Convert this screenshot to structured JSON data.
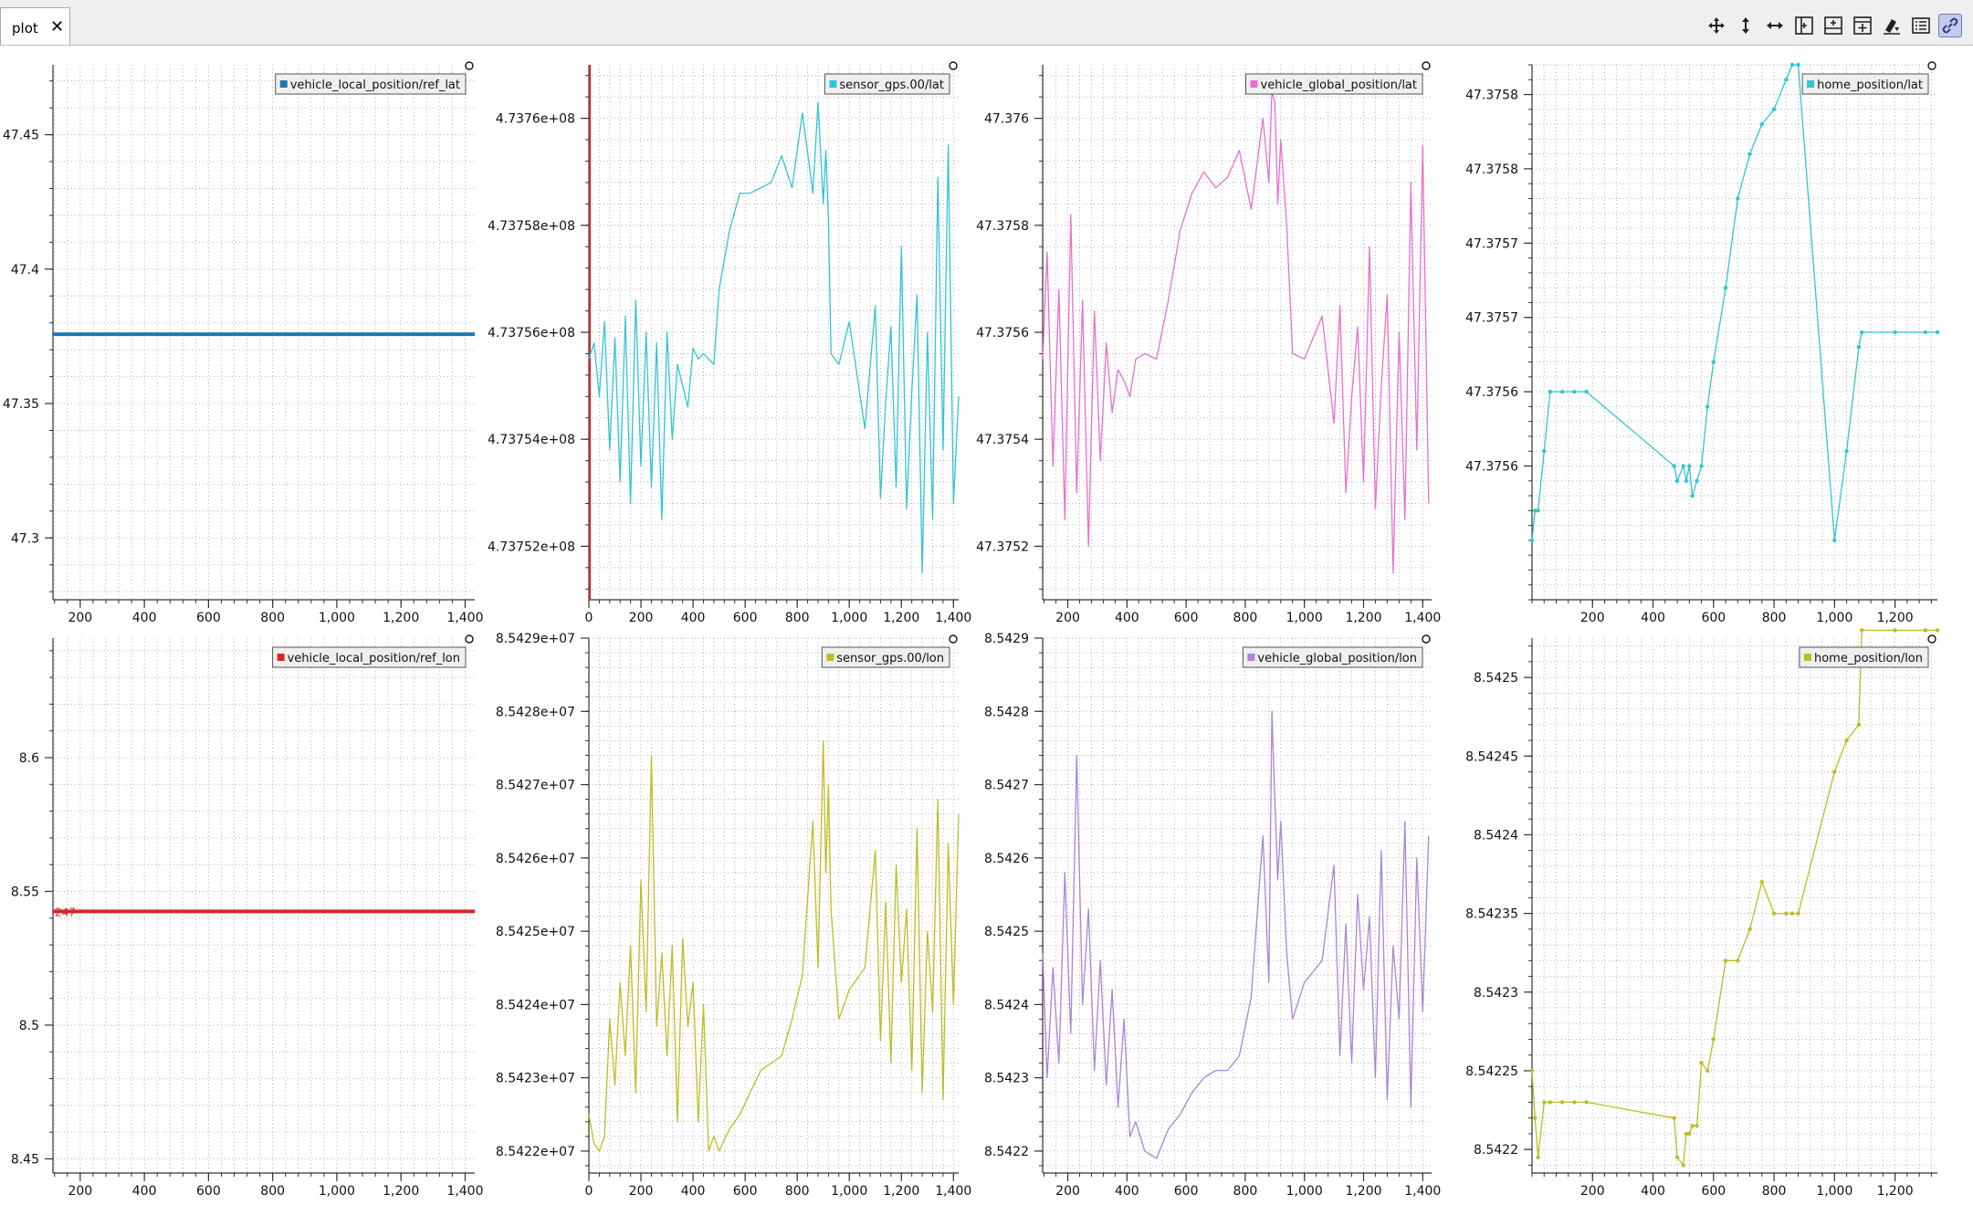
{
  "tab": {
    "label": "plot",
    "close_symbol": "✕"
  },
  "toolbar": [
    {
      "name": "move-icon",
      "active": false
    },
    {
      "name": "zoom-vertical-icon",
      "active": false
    },
    {
      "name": "zoom-horizontal-icon",
      "active": false
    },
    {
      "name": "split-horizontal-icon",
      "active": false
    },
    {
      "name": "split-vertical-icon",
      "active": false
    },
    {
      "name": "add-plot-icon",
      "active": false
    },
    {
      "name": "erase-icon",
      "active": false
    },
    {
      "name": "legend-icon",
      "active": false
    },
    {
      "name": "link-icon",
      "active": true
    }
  ],
  "chart_data": [
    {
      "type": "line",
      "legend": "vehicle_local_position/ref_lat",
      "color": "#1f77b4",
      "line_width": 4,
      "xlim": [
        115,
        1430
      ],
      "ylim": [
        47.277,
        47.476
      ],
      "xticks": [
        200,
        400,
        600,
        800,
        1000,
        1200,
        1400
      ],
      "xtick_labels": [
        "200",
        "400",
        "600",
        "800",
        "1,000",
        "1,200",
        "1,400"
      ],
      "yticks": [
        47.3,
        47.35,
        47.4,
        47.45
      ],
      "ytick_labels": [
        "47.3",
        "47.35",
        "47.4",
        "47.45"
      ],
      "x": [
        115,
        1430
      ],
      "y": [
        47.3758,
        47.3758
      ]
    },
    {
      "type": "line",
      "legend": "sensor_gps.00/lat",
      "color": "#31c4d4",
      "xlim": [
        0,
        1420
      ],
      "ylim": [
        473751000,
        473761000
      ],
      "xticks": [
        0,
        200,
        400,
        600,
        800,
        1000,
        1200,
        1400
      ],
      "xtick_labels": [
        "0",
        "200",
        "400",
        "600",
        "800",
        "1,000",
        "1,200",
        "1,400"
      ],
      "yticks": [
        473752000,
        473754000,
        473756000,
        473758000,
        473760000
      ],
      "ytick_labels": [
        "4.73752e+08",
        "4.73754e+08",
        "4.73756e+08",
        "4.73758e+08",
        "4.7376e+08"
      ],
      "vline": {
        "x": 0,
        "color": "#d62728"
      },
      "x": [
        0,
        20,
        40,
        60,
        80,
        100,
        120,
        140,
        160,
        180,
        200,
        220,
        240,
        260,
        280,
        300,
        320,
        340,
        360,
        380,
        400,
        420,
        440,
        460,
        480,
        500,
        540,
        580,
        620,
        660,
        700,
        740,
        780,
        820,
        860,
        880,
        900,
        910,
        920,
        930,
        960,
        1000,
        1060,
        1100,
        1120,
        1140,
        1160,
        1180,
        1200,
        1220,
        1240,
        1260,
        1280,
        1300,
        1320,
        1340,
        1360,
        1380,
        1400,
        1420
      ],
      "y": [
        473755500,
        473755800,
        473754800,
        473756200,
        473753800,
        473755900,
        473753200,
        473756300,
        473752800,
        473756600,
        473753500,
        473756000,
        473753100,
        473755800,
        473752500,
        473756000,
        473754000,
        473755400,
        473755000,
        473754600,
        473755700,
        473755500,
        473755600,
        473755500,
        473755400,
        473756800,
        473757900,
        473758600,
        473758600,
        473758700,
        473758800,
        473759300,
        473758700,
        473760100,
        473758600,
        473760300,
        473758400,
        473759400,
        473758100,
        473755600,
        473755400,
        473756200,
        473754200,
        473756500,
        473752900,
        473754700,
        473756100,
        473753100,
        473757600,
        473752700,
        473754900,
        473756700,
        473751500,
        473756000,
        473752500,
        473758900,
        473753800,
        473759500,
        473752800,
        473754800
      ]
    },
    {
      "type": "line",
      "legend": "vehicle_global_position/lat",
      "color": "#e86fcf",
      "xlim": [
        115,
        1430
      ],
      "ylim": [
        47.3751,
        47.3761
      ],
      "xticks": [
        200,
        400,
        600,
        800,
        1000,
        1200,
        1400
      ],
      "xtick_labels": [
        "200",
        "400",
        "600",
        "800",
        "1,000",
        "1,200",
        "1,400"
      ],
      "yticks": [
        47.3752,
        47.3754,
        47.3756,
        47.3758,
        47.376
      ],
      "ytick_labels": [
        "47.3752",
        "47.3754",
        "47.3756",
        "47.3758",
        "47.376"
      ],
      "x": [
        115,
        130,
        150,
        170,
        190,
        210,
        230,
        250,
        270,
        290,
        310,
        330,
        350,
        370,
        390,
        410,
        430,
        460,
        500,
        540,
        580,
        620,
        660,
        700,
        740,
        780,
        820,
        860,
        880,
        890,
        900,
        910,
        920,
        940,
        960,
        1000,
        1060,
        1100,
        1120,
        1140,
        1160,
        1180,
        1200,
        1220,
        1240,
        1260,
        1280,
        1300,
        1320,
        1340,
        1360,
        1380,
        1400,
        1420
      ],
      "y": [
        47.37555,
        47.37575,
        47.37535,
        47.37568,
        47.37525,
        47.37582,
        47.3753,
        47.37566,
        47.3752,
        47.37564,
        47.37536,
        47.37558,
        47.37545,
        47.37553,
        47.37551,
        47.37548,
        47.37555,
        47.37556,
        47.37555,
        47.37566,
        47.37579,
        47.37586,
        47.3759,
        47.37587,
        47.37589,
        47.37594,
        47.37583,
        47.376,
        47.37588,
        47.37605,
        47.37603,
        47.37584,
        47.37596,
        47.3758,
        47.37556,
        47.37555,
        47.37563,
        47.37543,
        47.37565,
        47.3753,
        47.37548,
        47.37561,
        47.37532,
        47.37576,
        47.37527,
        47.3755,
        47.37567,
        47.37515,
        47.3756,
        47.37525,
        47.37588,
        47.37538,
        47.37595,
        47.37528
      ]
    },
    {
      "type": "line",
      "legend": "home_position/lat",
      "color": "#31c4d4",
      "markers": true,
      "xlim": [
        0,
        1340
      ],
      "ylim": [
        47.3755,
        47.37586
      ],
      "xticks": [
        200,
        400,
        600,
        800,
        1000,
        1200
      ],
      "xtick_labels": [
        "200",
        "400",
        "600",
        "800",
        "1,000",
        "1,200"
      ],
      "yticks": [
        47.37559,
        47.37564,
        47.37569,
        47.37574,
        47.37579,
        47.37584
      ],
      "ytick_labels": [
        "47.3756",
        "47.3756",
        "47.3757",
        "47.3757",
        "47.3758",
        "47.3758"
      ],
      "x": [
        0,
        10,
        20,
        40,
        60,
        100,
        140,
        180,
        470,
        480,
        500,
        510,
        520,
        530,
        545,
        560,
        580,
        600,
        640,
        680,
        720,
        760,
        800,
        840,
        860,
        880,
        1000,
        1040,
        1080,
        1090,
        1200,
        1300,
        1340
      ],
      "y": [
        47.37554,
        47.37556,
        47.37556,
        47.3756,
        47.37564,
        47.37564,
        47.37564,
        47.37564,
        47.37559,
        47.37558,
        47.37559,
        47.37558,
        47.37559,
        47.37557,
        47.37558,
        47.37559,
        47.37563,
        47.37566,
        47.37571,
        47.37577,
        47.3758,
        47.37582,
        47.37583,
        47.37585,
        47.37586,
        47.37586,
        47.37554,
        47.3756,
        47.37567,
        47.37568,
        47.37568,
        47.37568,
        47.37568
      ]
    },
    {
      "type": "line",
      "legend": "vehicle_local_position/ref_lon",
      "color": "#d62728",
      "line_width": 4,
      "xlim": [
        115,
        1430
      ],
      "ylim": [
        8.4447,
        8.6447
      ],
      "xticks": [
        200,
        400,
        600,
        800,
        1000,
        1200,
        1400
      ],
      "xtick_labels": [
        "200",
        "400",
        "600",
        "800",
        "1,000",
        "1,200",
        "1,400"
      ],
      "yticks": [
        8.45,
        8.5,
        8.55,
        8.6
      ],
      "ytick_labels": [
        "8.45",
        "8.5",
        "8.55",
        "8.6"
      ],
      "marker_label": "247",
      "x": [
        115,
        1430
      ],
      "y": [
        8.5425,
        8.5425
      ]
    },
    {
      "type": "line",
      "legend": "sensor_gps.00/lon",
      "color": "#bcbd22",
      "xlim": [
        0,
        1420
      ],
      "ylim": [
        85421700,
        85429000
      ],
      "xticks": [
        0,
        200,
        400,
        600,
        800,
        1000,
        1200,
        1400
      ],
      "xtick_labels": [
        "0",
        "200",
        "400",
        "600",
        "800",
        "1,000",
        "1,200",
        "1,400"
      ],
      "yticks": [
        85422000,
        85423000,
        85424000,
        85425000,
        85426000,
        85427000,
        85428000,
        85429000
      ],
      "ytick_labels": [
        "8.5422e+07",
        "8.5423e+07",
        "8.5424e+07",
        "8.5425e+07",
        "8.5426e+07",
        "8.5427e+07",
        "8.5428e+07",
        "8.5429e+07"
      ],
      "x": [
        0,
        20,
        40,
        60,
        80,
        100,
        120,
        140,
        160,
        180,
        200,
        220,
        240,
        260,
        280,
        300,
        320,
        340,
        360,
        380,
        400,
        420,
        440,
        460,
        480,
        500,
        540,
        580,
        620,
        660,
        700,
        740,
        780,
        820,
        860,
        880,
        900,
        910,
        920,
        930,
        960,
        1000,
        1060,
        1100,
        1120,
        1140,
        1160,
        1180,
        1200,
        1220,
        1240,
        1260,
        1280,
        1300,
        1320,
        1340,
        1360,
        1380,
        1400,
        1420
      ],
      "y": [
        85422500,
        85422100,
        85422000,
        85422200,
        85423800,
        85422900,
        85424300,
        85423300,
        85424800,
        85422800,
        85425700,
        85423900,
        85427400,
        85423700,
        85424700,
        85423300,
        85424800,
        85422400,
        85424900,
        85423700,
        85424300,
        85422400,
        85424000,
        85422000,
        85422200,
        85422000,
        85422300,
        85422500,
        85422800,
        85423100,
        85423200,
        85423300,
        85423800,
        85424400,
        85426500,
        85424500,
        85427600,
        85425800,
        85427000,
        85425300,
        85423800,
        85424200,
        85424500,
        85426100,
        85423500,
        85425400,
        85423200,
        85425900,
        85424300,
        85425300,
        85423100,
        85426400,
        85422800,
        85425000,
        85423900,
        85426800,
        85422700,
        85426200,
        85424000,
        85426600
      ]
    },
    {
      "type": "line",
      "legend": "vehicle_global_position/lon",
      "color": "#a885d6",
      "xlim": [
        115,
        1430
      ],
      "ylim": [
        85421700,
        85429000
      ],
      "xticks": [
        200,
        400,
        600,
        800,
        1000,
        1200,
        1400
      ],
      "xtick_labels": [
        "200",
        "400",
        "600",
        "800",
        "1,000",
        "1,200",
        "1,400"
      ],
      "yticks": [
        85422000,
        85423000,
        85424000,
        85425000,
        85426000,
        85427000,
        85428000,
        85429000
      ],
      "ytick_labels": [
        "8.5422",
        "8.5423",
        "8.5424",
        "8.5425",
        "8.5426",
        "8.5427",
        "8.5428",
        "8.5429"
      ],
      "x": [
        115,
        130,
        150,
        170,
        190,
        210,
        230,
        250,
        270,
        290,
        310,
        330,
        350,
        370,
        390,
        410,
        430,
        460,
        500,
        540,
        580,
        620,
        660,
        700,
        740,
        780,
        820,
        860,
        880,
        890,
        900,
        910,
        920,
        940,
        960,
        1000,
        1060,
        1100,
        1120,
        1140,
        1160,
        1180,
        1200,
        1220,
        1240,
        1260,
        1280,
        1300,
        1320,
        1340,
        1360,
        1380,
        1400,
        1420
      ],
      "y": [
        85424700,
        85423000,
        85424500,
        85423200,
        85425800,
        85423600,
        85427400,
        85424000,
        85425300,
        85423100,
        85424600,
        85422900,
        85424200,
        85422600,
        85423800,
        85422200,
        85422400,
        85422000,
        85421900,
        85422300,
        85422500,
        85422800,
        85423000,
        85423100,
        85423100,
        85423300,
        85424100,
        85426300,
        85424300,
        85428000,
        85426800,
        85425700,
        85426500,
        85424700,
        85423800,
        85424300,
        85424600,
        85425900,
        85423300,
        85425100,
        85423200,
        85425500,
        85424200,
        85425200,
        85423000,
        85426100,
        85422700,
        85424800,
        85423800,
        85426500,
        85422600,
        85426000,
        85423900,
        85426300
      ]
    },
    {
      "type": "line",
      "legend": "home_position/lon",
      "color": "#bcbd22",
      "markers": true,
      "xlim": [
        0,
        1340
      ],
      "ylim": [
        85421850,
        85425250
      ],
      "xticks": [
        200,
        400,
        600,
        800,
        1000,
        1200
      ],
      "xtick_labels": [
        "200",
        "400",
        "600",
        "800",
        "1,000",
        "1,200"
      ],
      "yticks": [
        85422000,
        85422500,
        85423000,
        85423500,
        85424000,
        85424500,
        85425000
      ],
      "ytick_labels": [
        "8.5422",
        "8.54225",
        "8.5423",
        "8.54235",
        "8.5424",
        "8.54245",
        "8.5425"
      ],
      "x": [
        0,
        10,
        20,
        40,
        60,
        100,
        140,
        180,
        470,
        480,
        500,
        510,
        520,
        530,
        545,
        560,
        580,
        600,
        640,
        680,
        720,
        760,
        800,
        840,
        860,
        880,
        1000,
        1040,
        1080,
        1090,
        1200,
        1300,
        1340
      ],
      "y": [
        85422500,
        85422200,
        85421950,
        85422300,
        85422300,
        85422300,
        85422300,
        85422300,
        85422200,
        85421950,
        85421900,
        85422100,
        85422100,
        85422150,
        85422150,
        85422550,
        85422500,
        85422700,
        85423200,
        85423200,
        85423400,
        85423700,
        85423500,
        85423500,
        85423500,
        85423500,
        85424400,
        85424600,
        85424700,
        85425300,
        85425300,
        85425300,
        85425300
      ]
    }
  ]
}
